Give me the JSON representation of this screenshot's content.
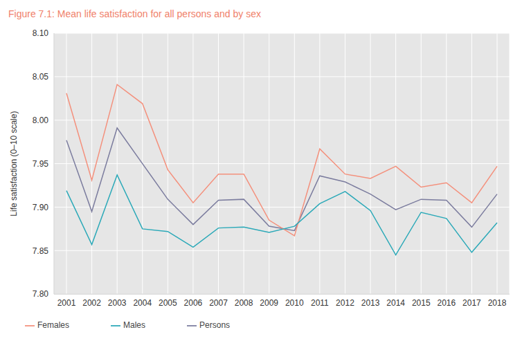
{
  "chart_data": {
    "type": "line",
    "title": "Figure 7.1: Mean life satisfaction for all persons and by sex",
    "y_label": "Life satisfaction (0–10 scale)",
    "categories": [
      "2001",
      "2002",
      "2003",
      "2004",
      "2005",
      "2006",
      "2007",
      "2008",
      "2009",
      "2010",
      "2011",
      "2012",
      "2013",
      "2014",
      "2015",
      "2016",
      "2017",
      "2018"
    ],
    "series": [
      {
        "name": "Persons",
        "color": "#7b7c9e",
        "values": [
          7.977,
          7.895,
          7.991,
          7.95,
          7.909,
          7.88,
          7.908,
          7.909,
          7.878,
          7.873,
          7.936,
          7.929,
          7.915,
          7.897,
          7.909,
          7.908,
          7.877,
          7.915
        ]
      },
      {
        "name": "Females",
        "color": "#f4907c",
        "values": [
          8.031,
          7.931,
          8.041,
          8.019,
          7.943,
          7.905,
          7.938,
          7.938,
          7.885,
          7.867,
          7.967,
          7.938,
          7.933,
          7.947,
          7.923,
          7.928,
          7.905,
          7.947
        ]
      },
      {
        "name": "Males",
        "color": "#2ba9b8",
        "values": [
          7.919,
          7.857,
          7.937,
          7.875,
          7.872,
          7.854,
          7.876,
          7.877,
          7.871,
          7.878,
          7.904,
          7.918,
          7.896,
          7.845,
          7.894,
          7.887,
          7.848,
          7.882
        ]
      }
    ],
    "ylim": [
      7.8,
      8.1
    ],
    "yticks": [
      {
        "value": 7.8,
        "label": "7.80"
      },
      7.85,
      {
        "value": 7.9,
        "label": "7.90"
      },
      7.95,
      {
        "value": 8,
        "label": "8.00"
      },
      8.05,
      {
        "value": 8.1,
        "label": "8.10"
      }
    ],
    "grid": true,
    "legend": "bottom-left"
  }
}
